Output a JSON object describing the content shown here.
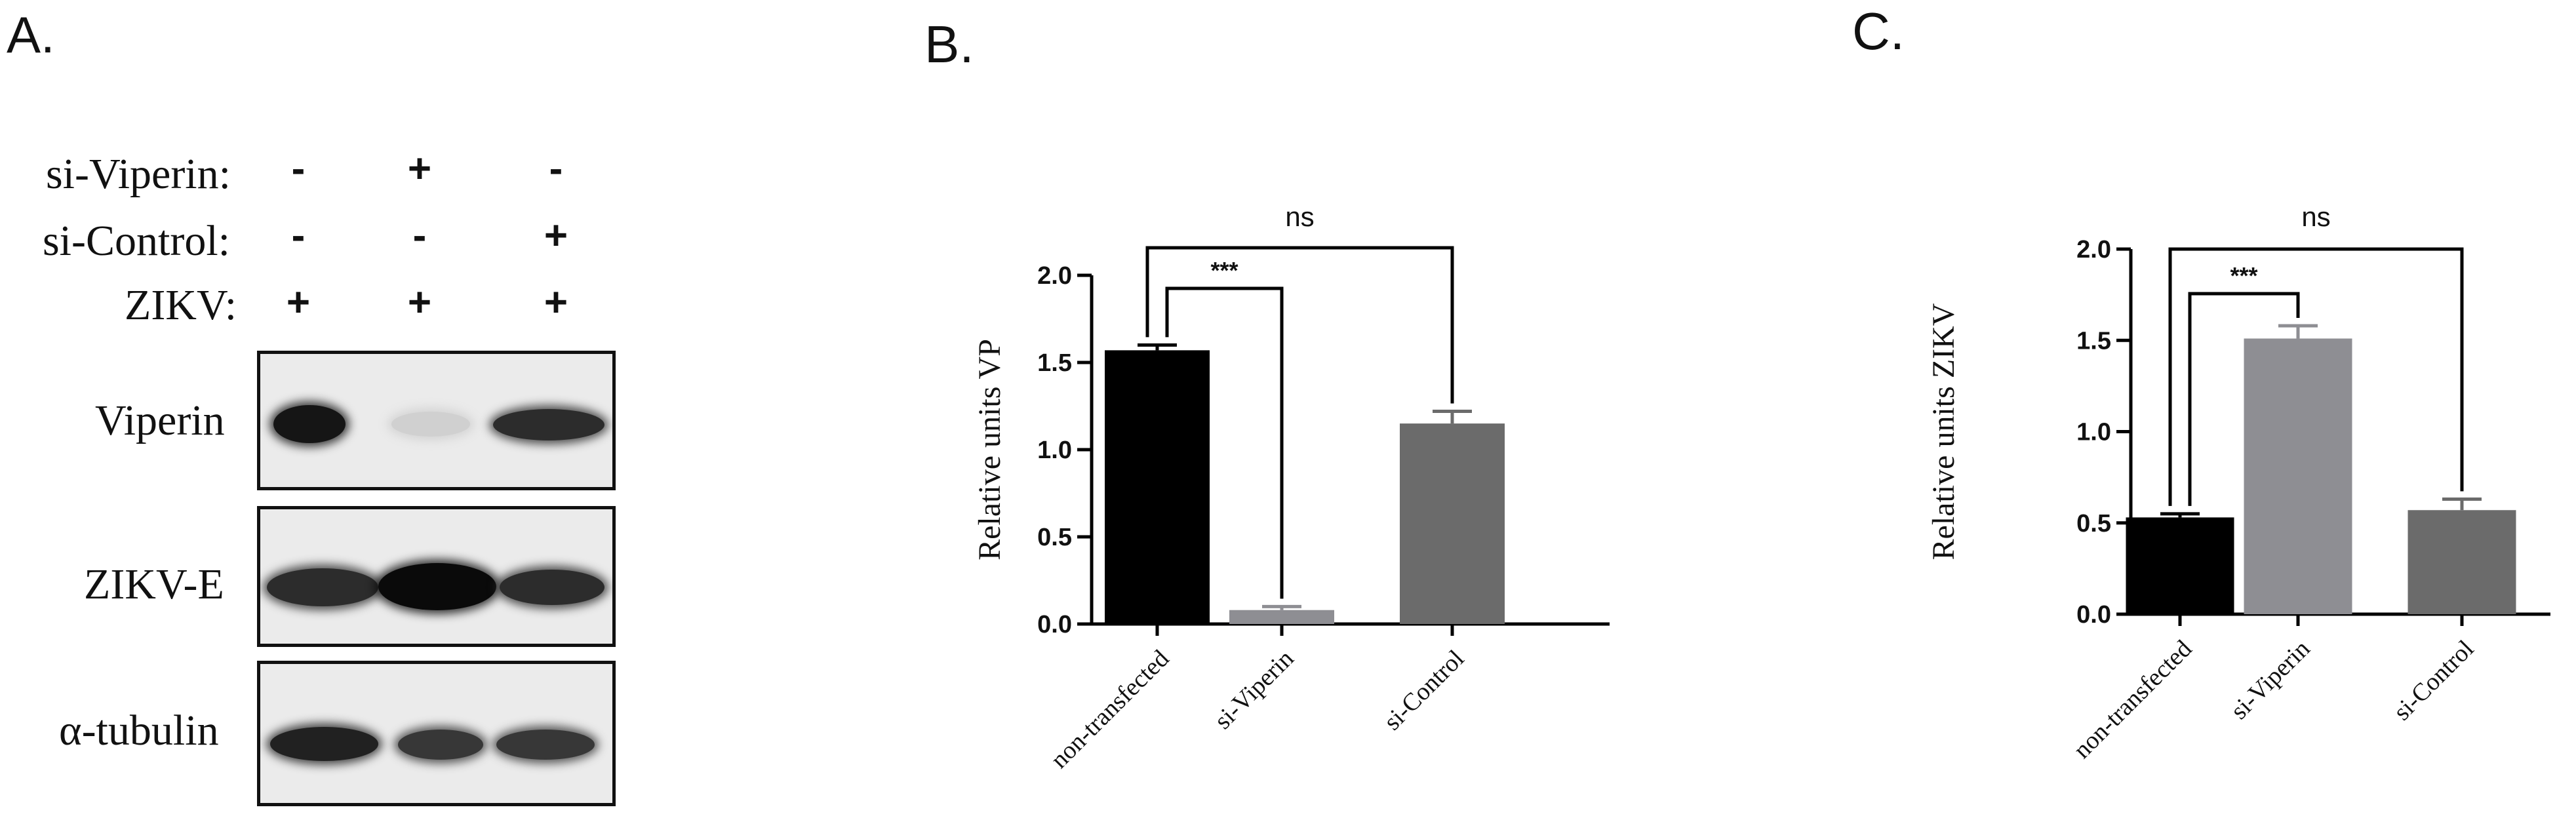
{
  "panel_a": {
    "letter": "A.",
    "conditions": [
      {
        "label": "si-Viperin:",
        "signs": [
          "-",
          "+",
          "-"
        ]
      },
      {
        "label": "si-Control:",
        "signs": [
          "-",
          "-",
          "+"
        ]
      },
      {
        "label": "ZIKV:",
        "signs": [
          "+",
          "+",
          "+"
        ]
      }
    ],
    "blots": [
      {
        "label": "Viperin",
        "intensities": [
          0.95,
          0.12,
          0.85
        ]
      },
      {
        "label": "ZIKV-E",
        "intensities": [
          0.85,
          1.0,
          0.85
        ]
      },
      {
        "label": "α-tubulin",
        "intensities": [
          0.9,
          0.8,
          0.8
        ]
      }
    ]
  },
  "chart_data": [
    {
      "letter": "B.",
      "type": "bar",
      "categories": [
        "non-transfected",
        "si-Viperin",
        "si-Control"
      ],
      "values": [
        1.57,
        0.08,
        1.15
      ],
      "errors": [
        0.03,
        0.02,
        0.07
      ],
      "colors": [
        "#000000",
        "#8e8e93",
        "#6b6b6b"
      ],
      "ylabel": "Relative units VP",
      "ylim": [
        0,
        2.0
      ],
      "yticks": [
        "0.0",
        "0.5",
        "1.0",
        "1.5",
        "2.0"
      ],
      "annotations": [
        {
          "text": "***",
          "from": 0,
          "to": 1
        },
        {
          "text": "ns",
          "from": 0,
          "to": 2
        }
      ]
    },
    {
      "letter": "C.",
      "type": "bar",
      "categories": [
        "non-transfected",
        "si-Viperin",
        "si-Control"
      ],
      "values": [
        0.53,
        1.51,
        0.57
      ],
      "errors": [
        0.02,
        0.07,
        0.06
      ],
      "colors": [
        "#000000",
        "#8e8e93",
        "#6b6b6b"
      ],
      "ylabel": "Relative units ZIKV",
      "ylim": [
        0,
        2.0
      ],
      "yticks": [
        "0.0",
        "0.5",
        "1.0",
        "1.5",
        "2.0"
      ],
      "annotations": [
        {
          "text": "***",
          "from": 0,
          "to": 1
        },
        {
          "text": "ns",
          "from": 0,
          "to": 2
        }
      ]
    }
  ]
}
